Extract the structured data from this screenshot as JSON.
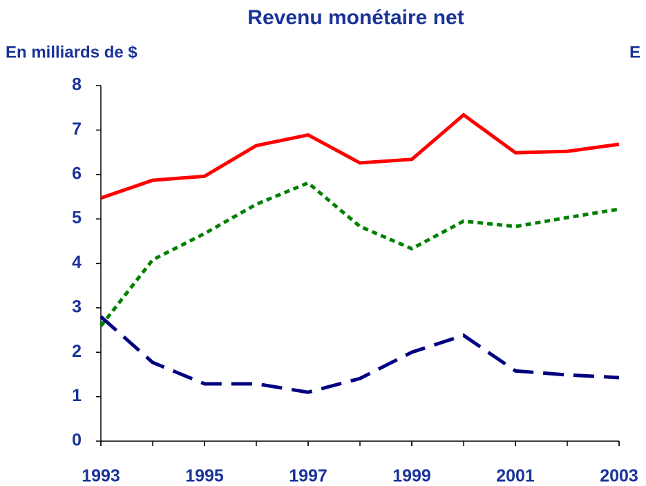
{
  "chart_data": {
    "type": "line",
    "title": "Revenu monétaire net",
    "y_label": "En milliards de $",
    "annotation": "E",
    "x": [
      1993,
      1994,
      1995,
      1996,
      1997,
      1998,
      1999,
      2000,
      2001,
      2002,
      2003
    ],
    "series": [
      {
        "color": "#ff0000",
        "style": "solid",
        "values": [
          5.47,
          5.87,
          5.96,
          6.65,
          6.89,
          6.26,
          6.34,
          7.34,
          6.49,
          6.52,
          6.68
        ]
      },
      {
        "color": "#008000",
        "style": "dotted",
        "values": [
          2.59,
          4.08,
          4.67,
          5.33,
          5.81,
          4.83,
          4.33,
          4.95,
          4.83,
          5.03,
          5.22
        ]
      },
      {
        "color": "#000080",
        "style": "dashed",
        "values": [
          2.8,
          1.77,
          1.29,
          1.29,
          1.1,
          1.41,
          2.0,
          2.38,
          1.58,
          1.49,
          1.43
        ]
      }
    ],
    "xlim": [
      1993,
      2003
    ],
    "xticks": [
      1993,
      1995,
      1997,
      1999,
      2001,
      2003
    ],
    "ylim": [
      0,
      8
    ],
    "yticks": [
      0,
      1,
      2,
      3,
      4,
      5,
      6,
      7,
      8
    ],
    "grid": false
  }
}
